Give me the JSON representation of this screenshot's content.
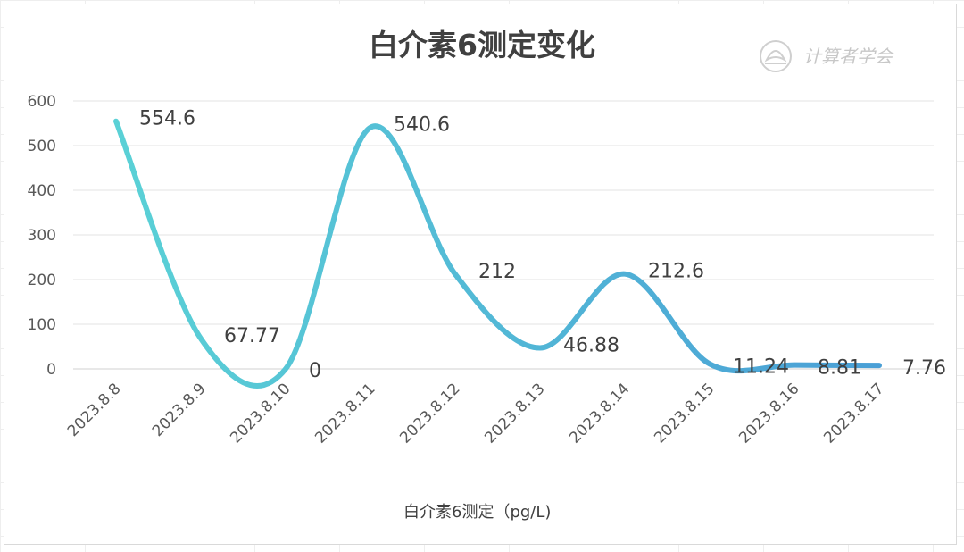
{
  "chart_data": {
    "type": "line",
    "title": "白介素6测定变化",
    "categories": [
      "2023.8.8",
      "2023.8.9",
      "2023.8.10",
      "2023.8.11",
      "2023.8.12",
      "2023.8.13",
      "2023.8.14",
      "2023.8.15",
      "2023.8.16",
      "2023.8.17"
    ],
    "series": [
      {
        "name": "白介素6测定（pg/L)",
        "values": [
          554.6,
          67.77,
          0,
          540.6,
          212,
          46.88,
          212.6,
          11.24,
          8.81,
          7.76
        ],
        "labels": [
          "554.6",
          "67.77",
          "0",
          "540.6",
          "212",
          "46.88",
          "212.6",
          "11.24",
          "8.81",
          "7.76"
        ]
      }
    ],
    "yticks": [
      "0",
      "100",
      "200",
      "300",
      "400",
      "500",
      "600"
    ],
    "ylim": [
      0,
      600
    ],
    "grid": true,
    "smooth": true,
    "legend": "bottom",
    "colors": {
      "line_start": "#5ad1d6",
      "line_end": "#4a9fd6"
    }
  },
  "watermark": {
    "text": "计算者学会",
    "icon": "lotus-seal-icon"
  }
}
